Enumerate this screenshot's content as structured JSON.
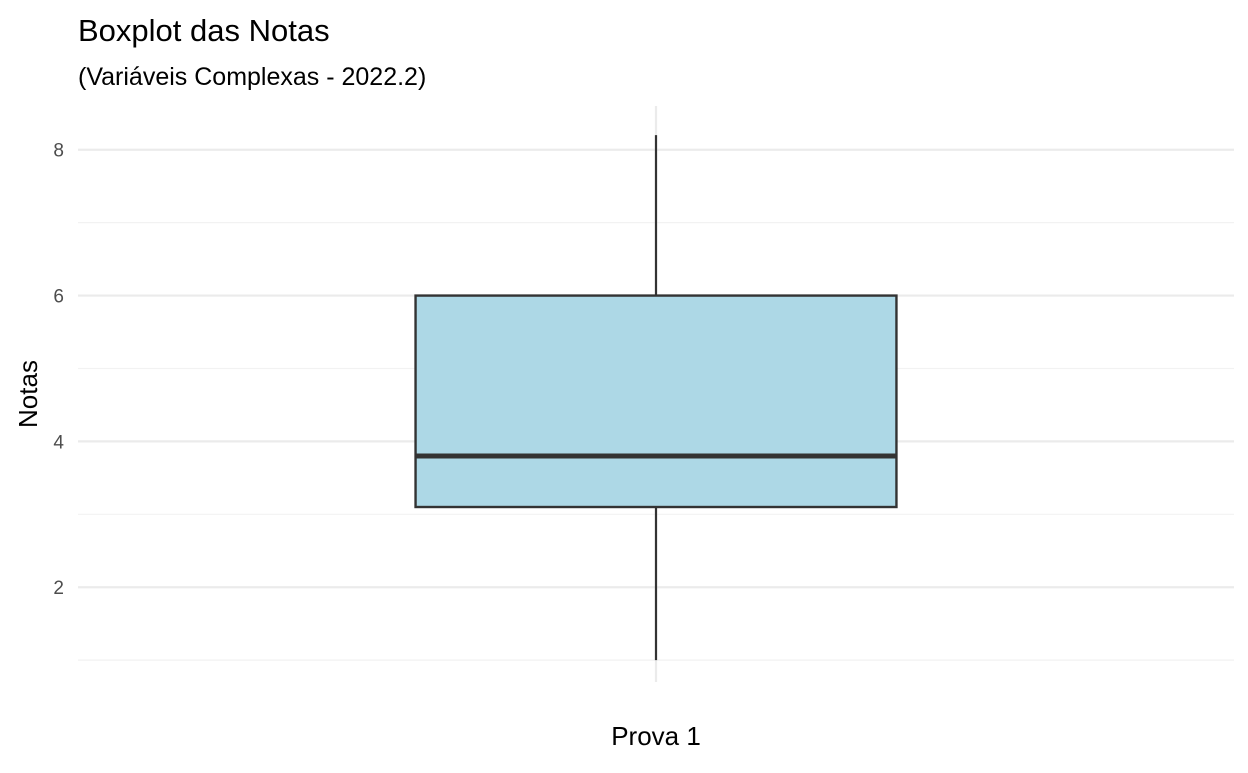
{
  "chart_data": {
    "type": "boxplot",
    "title": "Boxplot das Notas",
    "subtitle": "(Variáveis Complexas - 2022.2)",
    "xlabel": "",
    "ylabel": "Notas",
    "categories": [
      "Prova 1"
    ],
    "boxes": [
      {
        "category": "Prova 1",
        "min": 1.0,
        "q1": 3.1,
        "median": 3.8,
        "q3": 6.0,
        "max": 8.2
      }
    ],
    "ylim": [
      0.7,
      8.6
    ],
    "y_ticks": [
      2,
      4,
      6,
      8
    ],
    "y_minor_ticks": [
      1,
      3,
      5,
      7
    ],
    "grid": true,
    "legend": "none",
    "colors": {
      "box_fill": "#add8e6",
      "box_stroke": "#333333",
      "grid_major": "#ebebeb",
      "grid_minor": "#f2f2f2"
    }
  }
}
